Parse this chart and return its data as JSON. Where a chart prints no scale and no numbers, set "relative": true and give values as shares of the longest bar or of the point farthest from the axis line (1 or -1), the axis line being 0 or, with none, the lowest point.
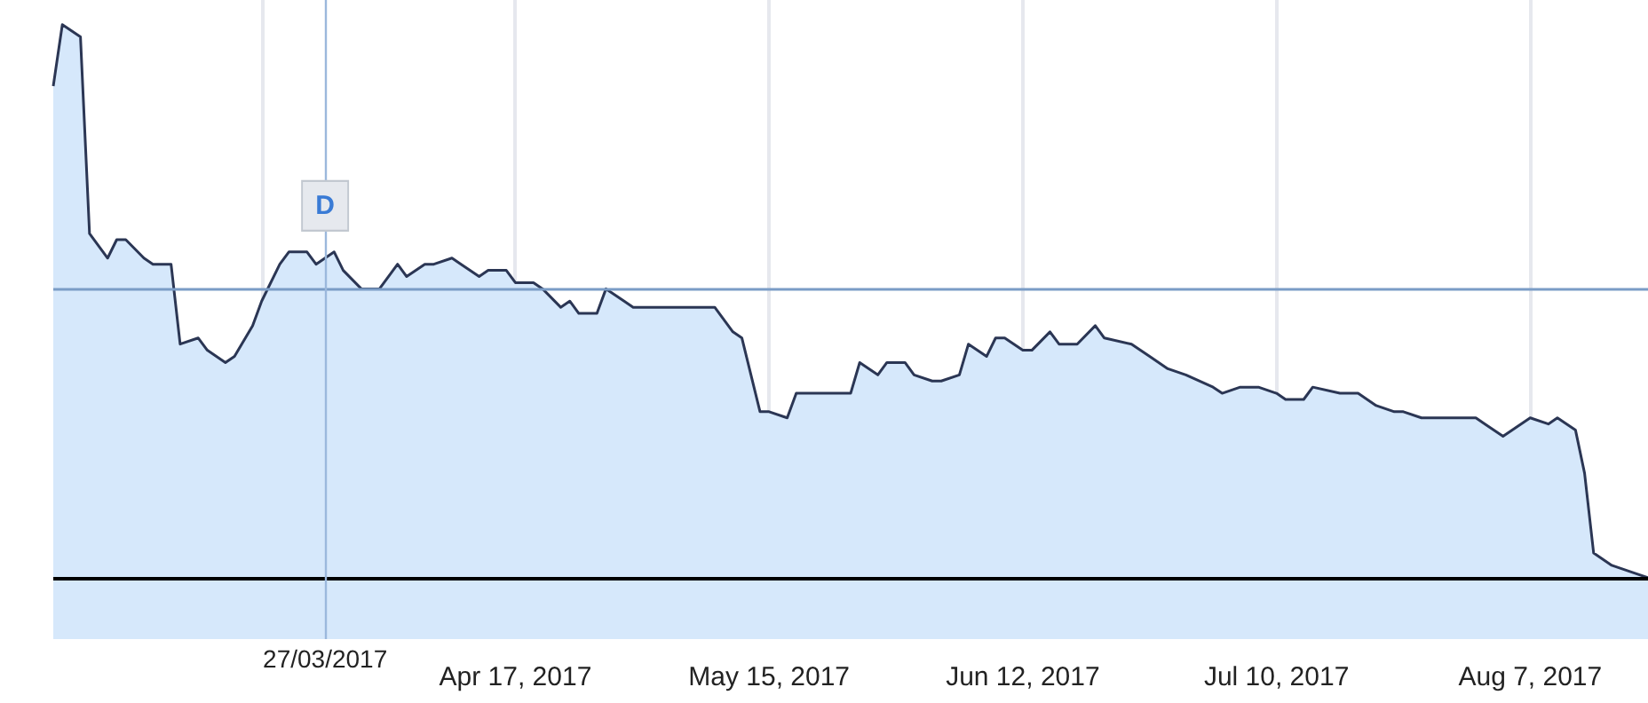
{
  "chart_data": {
    "type": "area",
    "relative": true,
    "color": "#2b3654",
    "x": [
      "2017-02-25",
      "2017-02-26",
      "2017-02-28",
      "2017-03-01",
      "2017-03-03",
      "2017-03-04",
      "2017-03-05",
      "2017-03-07",
      "2017-03-08",
      "2017-03-10",
      "2017-03-11",
      "2017-03-13",
      "2017-03-14",
      "2017-03-16",
      "2017-03-17",
      "2017-03-19",
      "2017-03-20",
      "2017-03-22",
      "2017-03-23",
      "2017-03-25",
      "2017-03-26",
      "2017-03-28",
      "2017-03-29",
      "2017-03-31",
      "2017-04-01",
      "2017-04-02",
      "2017-04-04",
      "2017-04-05",
      "2017-04-07",
      "2017-04-08",
      "2017-04-10",
      "2017-04-11",
      "2017-04-13",
      "2017-04-14",
      "2017-04-16",
      "2017-04-17",
      "2017-04-19",
      "2017-04-20",
      "2017-04-22",
      "2017-04-23",
      "2017-04-24",
      "2017-04-26",
      "2017-04-27",
      "2017-04-29",
      "2017-04-30",
      "2017-05-02",
      "2017-05-03",
      "2017-05-05",
      "2017-05-06",
      "2017-05-08",
      "2017-05-09",
      "2017-05-11",
      "2017-05-12",
      "2017-05-14",
      "2017-05-15",
      "2017-05-17",
      "2017-05-18",
      "2017-05-20",
      "2017-05-21",
      "2017-05-22",
      "2017-05-24",
      "2017-05-25",
      "2017-05-27",
      "2017-05-28",
      "2017-05-30",
      "2017-05-31",
      "2017-06-02",
      "2017-06-03",
      "2017-06-05",
      "2017-06-06",
      "2017-06-08",
      "2017-06-09",
      "2017-06-10",
      "2017-06-12",
      "2017-06-13",
      "2017-06-15",
      "2017-06-16",
      "2017-06-18",
      "2017-06-20",
      "2017-06-21",
      "2017-06-24",
      "2017-06-26",
      "2017-06-28",
      "2017-06-30",
      "2017-07-03",
      "2017-07-04",
      "2017-07-06",
      "2017-07-08",
      "2017-07-10",
      "2017-07-11",
      "2017-07-13",
      "2017-07-14",
      "2017-07-17",
      "2017-07-19",
      "2017-07-21",
      "2017-07-23",
      "2017-07-24",
      "2017-07-26",
      "2017-07-27",
      "2017-07-29",
      "2017-07-31",
      "2017-08-01",
      "2017-08-02",
      "2017-08-04",
      "2017-08-07",
      "2017-08-09",
      "2017-08-10",
      "2017-08-12",
      "2017-08-13",
      "2017-08-14",
      "2017-08-16",
      "2017-08-18",
      "2017-08-20"
    ],
    "values": [
      0.9,
      1.0,
      0.98,
      0.66,
      0.62,
      0.65,
      0.65,
      0.62,
      0.61,
      0.61,
      0.48,
      0.49,
      0.47,
      0.45,
      0.46,
      0.51,
      0.55,
      0.61,
      0.63,
      0.63,
      0.61,
      0.63,
      0.6,
      0.57,
      0.57,
      0.57,
      0.61,
      0.59,
      0.61,
      0.61,
      0.62,
      0.61,
      0.59,
      0.6,
      0.6,
      0.58,
      0.58,
      0.57,
      0.54,
      0.55,
      0.53,
      0.53,
      0.57,
      0.55,
      0.54,
      0.54,
      0.54,
      0.54,
      0.54,
      0.54,
      0.54,
      0.5,
      0.49,
      0.37,
      0.37,
      0.36,
      0.4,
      0.4,
      0.4,
      0.4,
      0.4,
      0.45,
      0.43,
      0.45,
      0.45,
      0.43,
      0.42,
      0.42,
      0.43,
      0.48,
      0.46,
      0.49,
      0.49,
      0.47,
      0.47,
      0.5,
      0.48,
      0.48,
      0.51,
      0.49,
      0.48,
      0.46,
      0.44,
      0.43,
      0.41,
      0.4,
      0.41,
      0.41,
      0.4,
      0.39,
      0.39,
      0.41,
      0.4,
      0.4,
      0.38,
      0.37,
      0.37,
      0.36,
      0.36,
      0.36,
      0.36,
      0.36,
      0.35,
      0.33,
      0.36,
      0.35,
      0.36,
      0.34,
      0.27,
      0.14,
      0.12,
      0.11,
      0.1
    ],
    "xlim": [
      "2017-02-25",
      "2017-08-20"
    ],
    "xticks": [
      {
        "value": "2017-03-20",
        "label": null
      },
      {
        "value": "2017-04-17",
        "label": "Apr 17, 2017"
      },
      {
        "value": "2017-05-15",
        "label": "May 15, 2017"
      },
      {
        "value": "2017-06-12",
        "label": "Jun 12, 2017"
      },
      {
        "value": "2017-07-10",
        "label": "Jul 10, 2017"
      },
      {
        "value": "2017-08-07",
        "label": "Aug 7, 2017"
      }
    ],
    "grid": true,
    "marker": "none",
    "line_style": "solid",
    "ref_lines": [
      {
        "axis": "y",
        "value": 0.1,
        "label": null,
        "color": "#000000"
      },
      {
        "axis": "y",
        "value": 0.57,
        "label": null,
        "color": "#7a9cc6"
      },
      {
        "axis": "x",
        "value": "2017-03-27",
        "label": "27/03/2017",
        "color": "#9bb8dc"
      }
    ],
    "annotations": [
      {
        "text": "D",
        "x": "2017-03-27",
        "y": 0.63
      }
    ]
  }
}
